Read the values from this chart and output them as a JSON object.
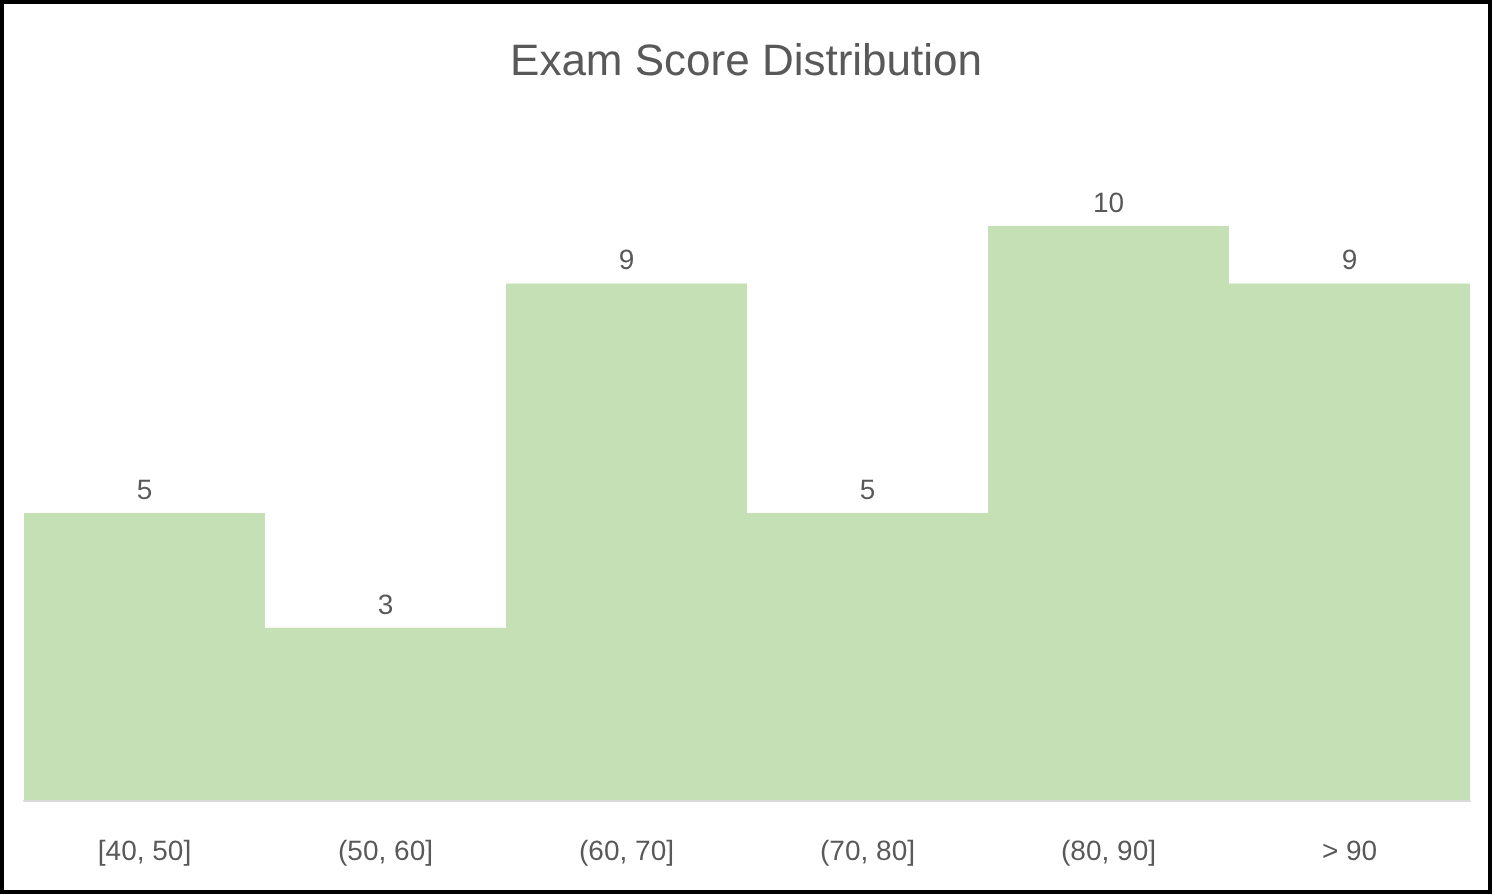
{
  "chart_data": {
    "type": "bar",
    "title": "Exam Score Distribution",
    "categories": [
      "[40, 50]",
      "(50, 60]",
      "(60, 70]",
      "(70, 80]",
      "(80, 90]",
      "> 90"
    ],
    "values": [
      5,
      3,
      9,
      5,
      10,
      9
    ],
    "color": "#c5e0b4",
    "data_labels": true
  }
}
